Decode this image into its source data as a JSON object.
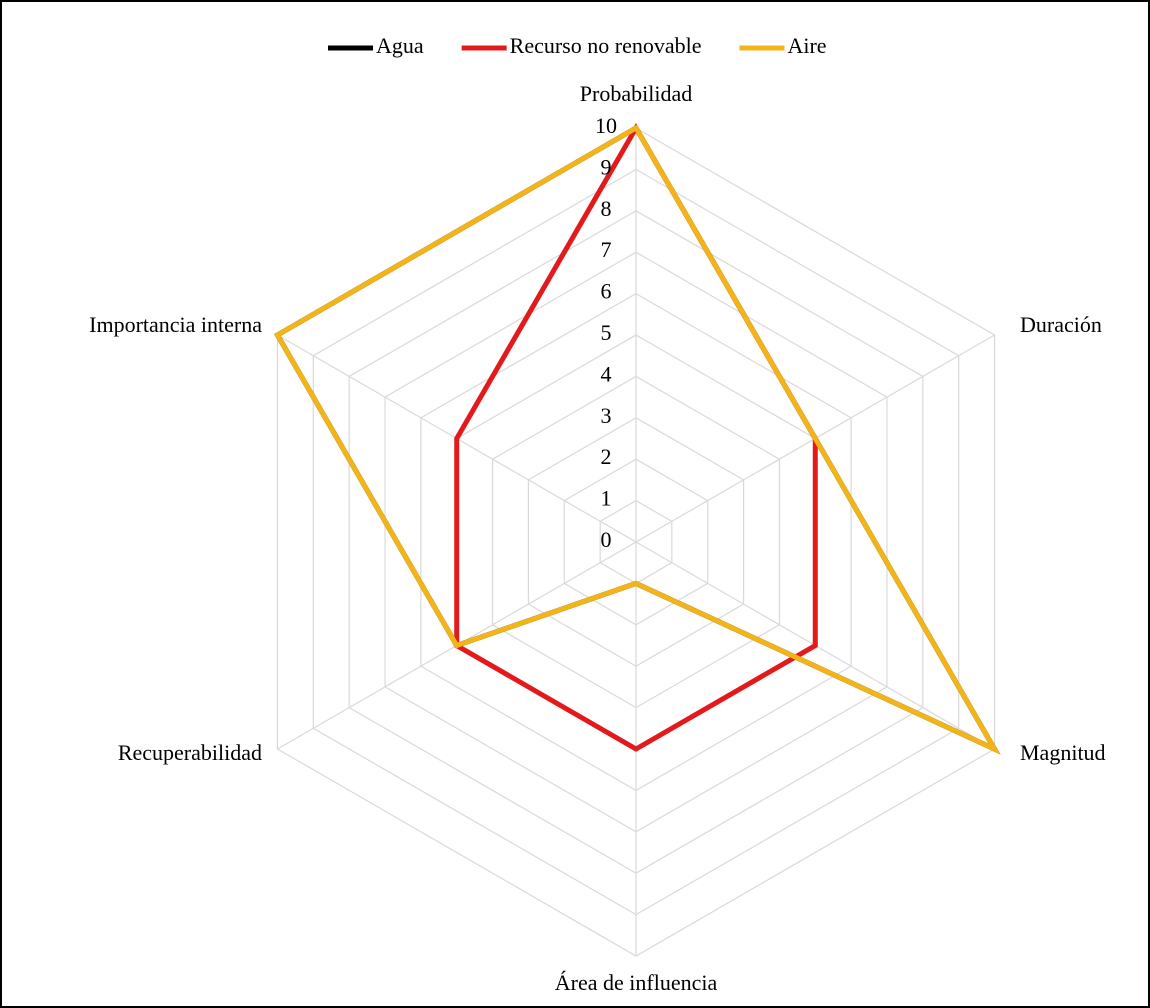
{
  "chart_data": {
    "type": "radar",
    "categories": [
      "Probabilidad",
      "Duración",
      "Magnitud",
      "Área de influencia",
      "Recuperabilidad",
      "Importancia interna"
    ],
    "series": [
      {
        "name": "Agua",
        "color": "#000000",
        "values": [
          10,
          5,
          10,
          1,
          5,
          10
        ]
      },
      {
        "name": "Recurso no renovable",
        "color": "#e31a1c",
        "values": [
          10,
          5,
          5,
          5,
          5,
          5
        ]
      },
      {
        "name": "Aire",
        "color": "#f2b418",
        "values": [
          10,
          5,
          10,
          1,
          5,
          10
        ]
      }
    ],
    "ylim": [
      0,
      10
    ],
    "yticks": [
      0,
      1,
      2,
      3,
      4,
      5,
      6,
      7,
      8,
      9,
      10
    ],
    "grid": true,
    "legend": "top"
  }
}
